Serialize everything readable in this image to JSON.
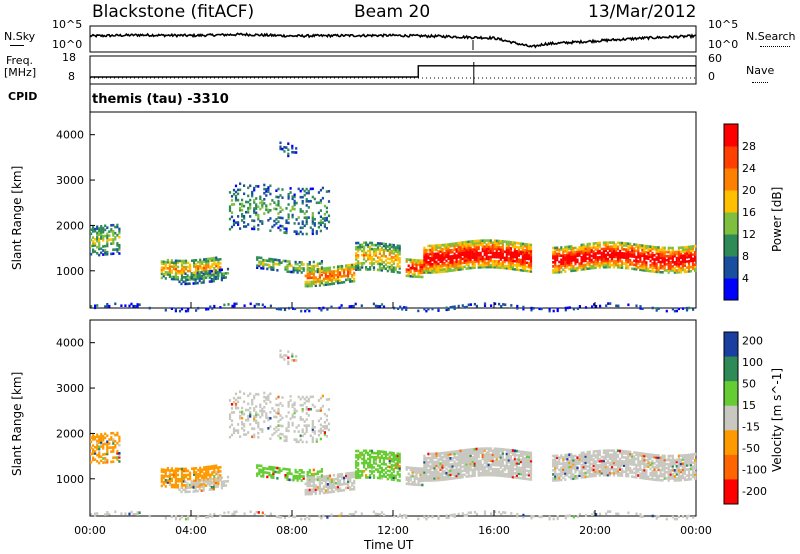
{
  "header": {
    "station": "Blackstone (fitACF)",
    "beam": "Beam 20",
    "date": "13/Mar/2012"
  },
  "noise_panel": {
    "left_label": "N.Sky",
    "right_label": "N.Search",
    "left_ticks": [
      "10^5",
      "10^0"
    ],
    "right_ticks": [
      "10^5",
      "10^0"
    ]
  },
  "freq_panel": {
    "left_label_1": "Freq.",
    "left_label_2": "[MHz]",
    "left_ticks": [
      "18",
      "8"
    ],
    "right_label": "Nave",
    "right_ticks": [
      "60",
      "0"
    ],
    "cpid_label": "CPID",
    "cpid_text": "themis (tau) -3310"
  },
  "colors": {
    "power": [
      "#0000ff",
      "#1a4fa0",
      "#2e8b57",
      "#7fbf3f",
      "#ffc000",
      "#ff8000",
      "#ff4000",
      "#ff0000"
    ],
    "velocity": [
      "#1a3fa0",
      "#2e8b57",
      "#66cc33",
      "#c8c8c0",
      "#ff9900",
      "#ff6600",
      "#ff0000"
    ]
  },
  "chart_data": [
    {
      "type": "line",
      "title": "N.Sky / N.Search",
      "x": [
        "00:00",
        "02:00",
        "04:00",
        "06:00",
        "08:00",
        "10:00",
        "12:00",
        "14:00",
        "16:00",
        "17:30",
        "18:00",
        "20:00",
        "22:00",
        "24:00"
      ],
      "series": [
        {
          "name": "N.Sky",
          "values": [
            0.7,
            0.75,
            0.72,
            0.78,
            0.7,
            0.72,
            0.73,
            0.68,
            0.6,
            0.15,
            0.3,
            0.45,
            0.6,
            0.7
          ]
        }
      ],
      "ylim": [
        0,
        1
      ]
    },
    {
      "type": "line",
      "title": "Freq. [MHz]",
      "x": [
        "00:00",
        "13:00",
        "13:01",
        "24:00"
      ],
      "series": [
        {
          "name": "Freq.",
          "values": [
            10.5,
            10.5,
            14.5,
            14.5
          ]
        }
      ],
      "ylim": [
        8,
        18
      ]
    },
    {
      "type": "heatmap",
      "ylabel": "Slant Range [km]",
      "xlabel": "Time UT",
      "x_ticks": [
        "00:00",
        "04:00",
        "08:00",
        "12:00",
        "16:00",
        "20:00",
        "00:00"
      ],
      "y_ticks": [
        "1000",
        "2000",
        "3000",
        "4000"
      ],
      "ylim": [
        180,
        4500
      ],
      "colorbar": {
        "label": "Power [dB]",
        "ticks": [
          "4",
          "8",
          "12",
          "16",
          "20",
          "24",
          "28"
        ]
      }
    },
    {
      "type": "heatmap",
      "ylabel": "Slant Range [km]",
      "xlabel": "Time UT",
      "x_ticks": [
        "00:00",
        "04:00",
        "08:00",
        "12:00",
        "16:00",
        "20:00",
        "00:00"
      ],
      "y_ticks": [
        "1000",
        "2000",
        "3000",
        "4000"
      ],
      "ylim": [
        180,
        4500
      ],
      "colorbar": {
        "label": "Velocity [m s^-1]",
        "ticks": [
          "200",
          "100",
          "50",
          "15",
          "-15",
          "-50",
          "-100",
          "-200"
        ]
      }
    }
  ]
}
